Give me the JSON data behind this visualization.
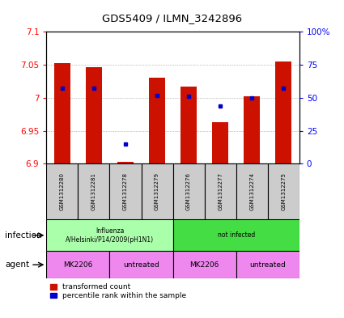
{
  "title": "GDS5409 / ILMN_3242896",
  "samples": [
    "GSM1312280",
    "GSM1312281",
    "GSM1312278",
    "GSM1312279",
    "GSM1312276",
    "GSM1312277",
    "GSM1312274",
    "GSM1312275"
  ],
  "transformed_count": [
    7.052,
    7.046,
    6.903,
    7.03,
    7.017,
    6.963,
    7.002,
    7.055
  ],
  "percentile_rank": [
    57,
    57,
    15,
    52,
    51,
    44,
    50,
    57
  ],
  "ylim": [
    6.9,
    7.1
  ],
  "ylim_right": [
    0,
    100
  ],
  "yticks_left": [
    6.9,
    6.95,
    7.0,
    7.05,
    7.1
  ],
  "yticks_right": [
    0,
    25,
    50,
    75,
    100
  ],
  "ytick_labels_left": [
    "6.9",
    "6.95",
    "7",
    "7.05",
    "7.1"
  ],
  "ytick_labels_right": [
    "0",
    "25",
    "50",
    "75",
    "100%"
  ],
  "bar_color": "#cc1100",
  "dot_color": "#0000cc",
  "bar_bottom": 6.9,
  "infection_labels": [
    {
      "text": "Influenza\nA/Helsinki/P14/2009(pH1N1)",
      "start": 0,
      "end": 3,
      "color": "#aaffaa"
    },
    {
      "text": "not infected",
      "start": 4,
      "end": 7,
      "color": "#44dd44"
    }
  ],
  "agent_labels": [
    {
      "text": "MK2206",
      "start": 0,
      "end": 1,
      "color": "#ee88ee"
    },
    {
      "text": "untreated",
      "start": 2,
      "end": 3,
      "color": "#ee88ee"
    },
    {
      "text": "MK2206",
      "start": 4,
      "end": 5,
      "color": "#ee88ee"
    },
    {
      "text": "untreated",
      "start": 6,
      "end": 7,
      "color": "#ee88ee"
    }
  ],
  "legend_red_label": "transformed count",
  "legend_blue_label": "percentile rank within the sample",
  "infection_row_label": "infection",
  "agent_row_label": "agent",
  "grid_color": "#888888",
  "sample_bg": "#cccccc"
}
